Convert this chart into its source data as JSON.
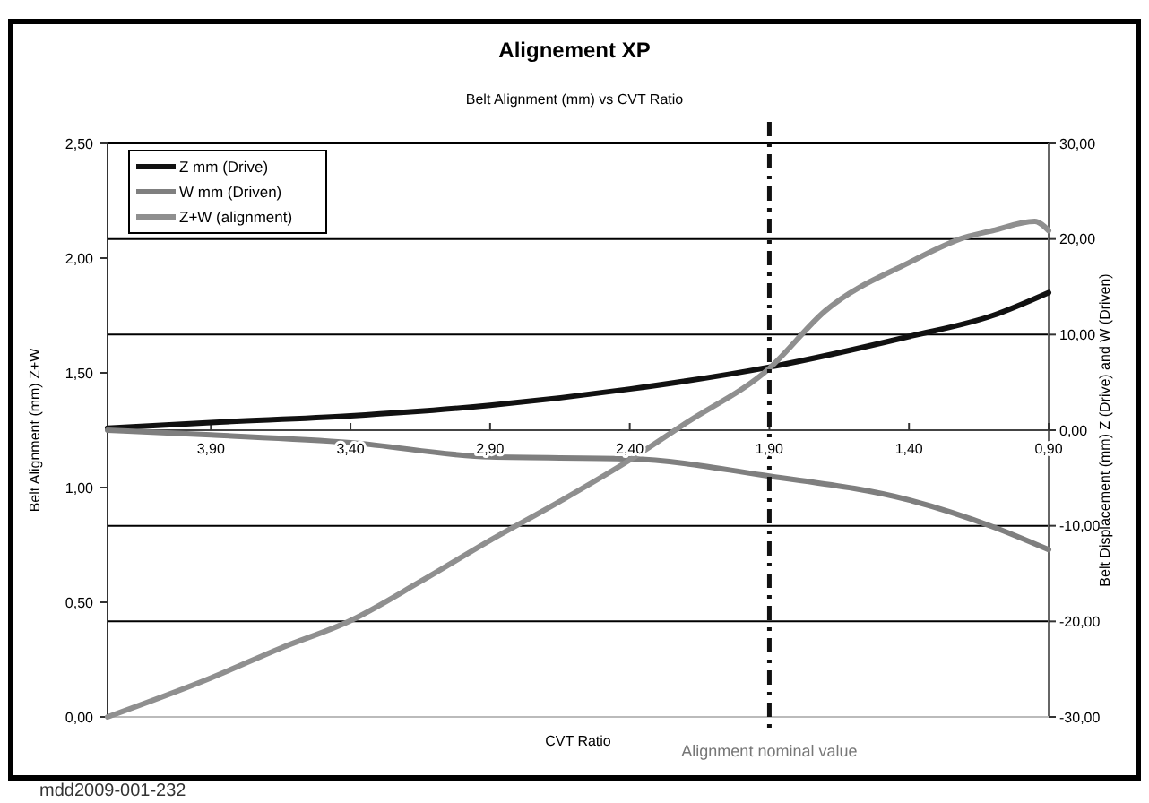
{
  "chart_data": {
    "type": "line",
    "title": "Alignement XP",
    "subtitle": "Belt Alignment (mm) vs CVT Ratio",
    "xlabel": "CVT Ratio",
    "ylabel": "Belt Alignment (mm) Z+W",
    "y2label": "Belt Displacement (mm) Z (Drive) and W (Driven)",
    "xlim": [
      4.27,
      0.9
    ],
    "xticks": [
      {
        "value": 3.9,
        "label": "3,90"
      },
      {
        "value": 3.4,
        "label": "3,40"
      },
      {
        "value": 2.9,
        "label": "2,90"
      },
      {
        "value": 2.4,
        "label": "2,40"
      },
      {
        "value": 1.9,
        "label": "1,90"
      },
      {
        "value": 1.4,
        "label": "1,40"
      },
      {
        "value": 0.9,
        "label": "0,90"
      }
    ],
    "ylim": [
      0,
      2.5
    ],
    "yticks": [
      {
        "value": 0,
        "label": "0,00"
      },
      {
        "value": 0.5,
        "label": "0,50"
      },
      {
        "value": 1,
        "label": "1,00"
      },
      {
        "value": 1.5,
        "label": "1,50"
      },
      {
        "value": 2,
        "label": "2,00"
      },
      {
        "value": 2.5,
        "label": "2,50"
      }
    ],
    "y2lim": [
      -30,
      30
    ],
    "y2ticks": [
      {
        "value": -30,
        "label": "-30,00"
      },
      {
        "value": -20,
        "label": "-20,00"
      },
      {
        "value": -10,
        "label": "-10,00"
      },
      {
        "value": 0,
        "label": "0,00"
      },
      {
        "value": 10,
        "label": "10,00"
      },
      {
        "value": 20,
        "label": "20,00"
      },
      {
        "value": 30,
        "label": "30,00"
      }
    ],
    "grid": "y",
    "legend": "top left",
    "line_style": "solid",
    "series": [
      {
        "name": "Z mm (Drive)",
        "color": "#111111",
        "axis": "y2",
        "x": [
          4.27,
          3.9,
          3.4,
          2.9,
          2.4,
          1.9,
          1.4,
          1.1,
          0.9
        ],
        "values": [
          0.2,
          0.8,
          1.5,
          2.6,
          4.3,
          6.6,
          9.8,
          12,
          14.4
        ]
      },
      {
        "name": "W mm  (Driven)",
        "color": "#7f7f7f",
        "axis": "y2",
        "x": [
          4.27,
          3.9,
          3.4,
          2.9,
          2.4,
          1.9,
          1.4,
          1.1,
          0.9
        ],
        "values": [
          0,
          -0.5,
          -1.3,
          -2.8,
          -3,
          -4.8,
          -7.3,
          -10.1,
          -12.5
        ]
      },
      {
        "name": "Z+W (alignment)",
        "color": "#8f8f8f",
        "x": [
          4.27,
          3.9,
          3.65,
          3.4,
          3.15,
          2.9,
          2.65,
          2.4,
          2.2,
          1.9,
          1.7,
          1.4,
          1.2,
          1.1,
          0.95,
          0.9
        ],
        "values": [
          0,
          0.17,
          0.3,
          0.42,
          0.59,
          0.77,
          0.94,
          1.12,
          1.28,
          1.52,
          1.77,
          1.98,
          2.09,
          2.12,
          2.16,
          2.12
        ]
      }
    ],
    "ref_lines": [
      {
        "axis": "x",
        "value": 1.9,
        "label": "Alignment nominal value",
        "color": "#111111",
        "line_style": "dashdot"
      }
    ],
    "annotations": [
      "mdd2009-001-232"
    ]
  }
}
